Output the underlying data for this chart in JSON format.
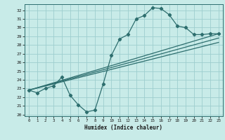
{
  "bg_color": "#c8ebe8",
  "grid_color": "#9ecece",
  "line_color": "#2d6e6e",
  "xlabel": "Humidex (Indice chaleur)",
  "xlim": [
    -0.5,
    23.5
  ],
  "ylim": [
    19.8,
    32.7
  ],
  "yticks": [
    20,
    21,
    22,
    23,
    24,
    25,
    26,
    27,
    28,
    29,
    30,
    31,
    32
  ],
  "xticks": [
    0,
    1,
    2,
    3,
    4,
    5,
    6,
    7,
    8,
    9,
    10,
    11,
    12,
    13,
    14,
    15,
    16,
    17,
    18,
    19,
    20,
    21,
    22,
    23
  ],
  "curve1_x": [
    0,
    1,
    2,
    3,
    4,
    5,
    6,
    7,
    8,
    9,
    10,
    11,
    12,
    13,
    14,
    15,
    16,
    17,
    18,
    19,
    20,
    21,
    22,
    23
  ],
  "curve1_y": [
    22.8,
    22.5,
    23.0,
    23.3,
    24.3,
    22.2,
    21.1,
    20.3,
    20.5,
    23.5,
    26.8,
    28.7,
    29.2,
    31.0,
    31.4,
    32.3,
    32.2,
    31.5,
    30.2,
    30.0,
    29.2,
    29.2,
    29.3,
    29.3
  ],
  "curve2_x": [
    0,
    23
  ],
  "curve2_y": [
    22.8,
    29.3
  ],
  "curve3_x": [
    0,
    23
  ],
  "curve3_y": [
    22.8,
    28.8
  ],
  "curve4_x": [
    0,
    23
  ],
  "curve4_y": [
    22.8,
    28.3
  ]
}
